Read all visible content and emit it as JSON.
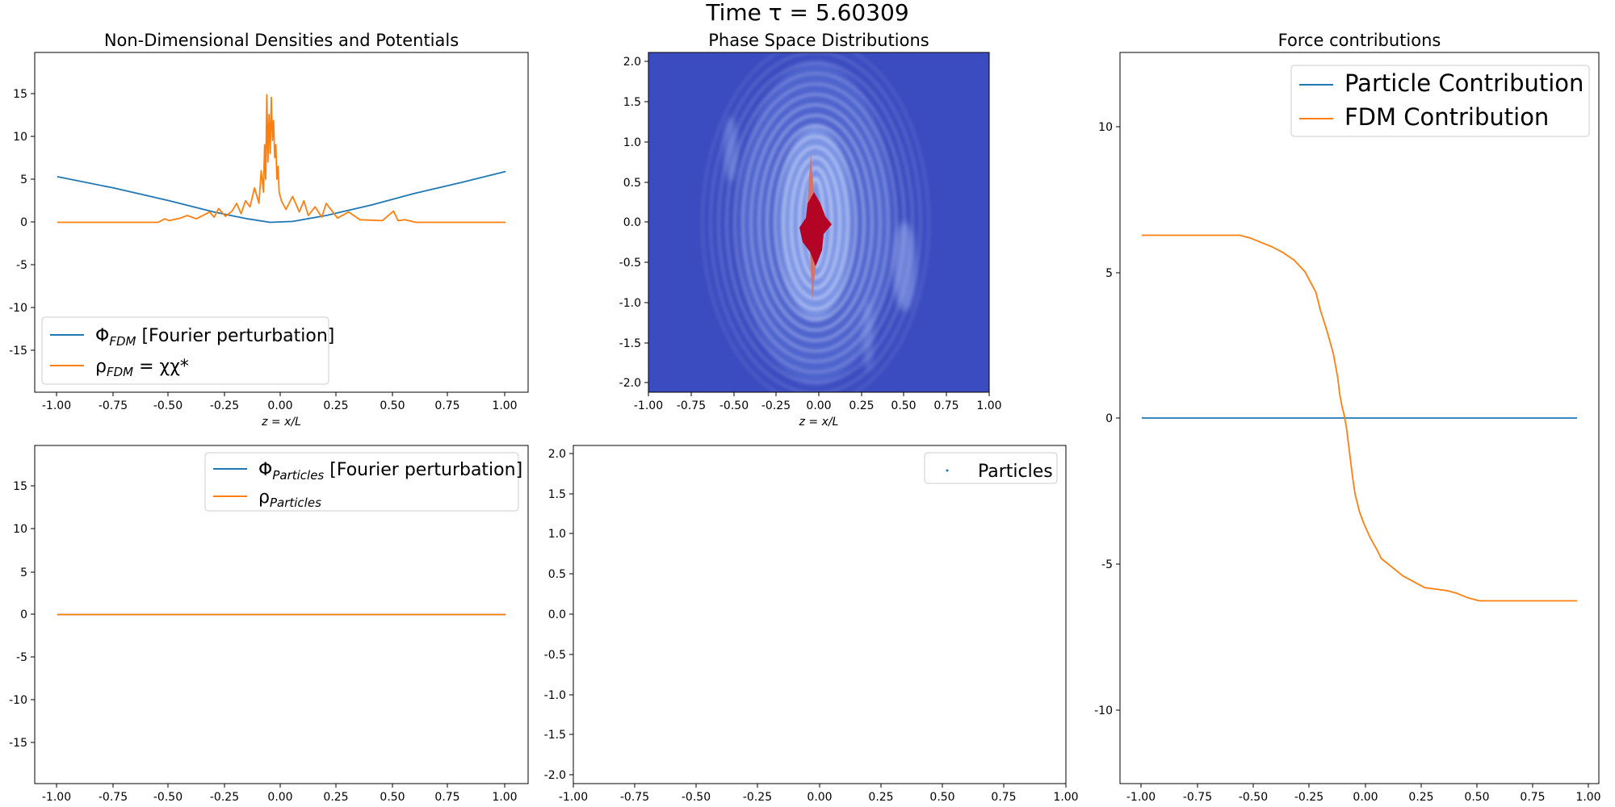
{
  "suptitle": "Time τ = 5.60309",
  "colors": {
    "blue": "#1f77b4",
    "orange": "#ff7f0e",
    "phase_bg": "#3b4cc0",
    "phase_core": "#b40426"
  },
  "chart_data": [
    {
      "id": "densities",
      "type": "line",
      "title": "Non-Dimensional Densities and Potentials",
      "xlabel": "z = x/L",
      "xlim": [
        -1.1,
        1.1
      ],
      "ylim": [
        -19.7,
        19.7
      ],
      "xticks": [
        "-1.00",
        "-0.75",
        "-0.50",
        "-0.25",
        "0.00",
        "0.25",
        "0.50",
        "0.75",
        "1.00"
      ],
      "yticks": [
        "15",
        "10",
        "5",
        "0",
        "-5",
        "-10",
        "-15"
      ],
      "legend_position": "lower-left",
      "series": [
        {
          "name": "ΦFDM [Fourier perturbation]",
          "x": [
            -1.0,
            -0.75,
            -0.5,
            -0.3,
            -0.15,
            -0.05,
            0.05,
            0.2,
            0.4,
            0.6,
            0.8,
            1.0
          ],
          "y": [
            5.3,
            4.0,
            2.5,
            1.2,
            0.4,
            0.0,
            0.1,
            0.8,
            2.0,
            3.4,
            4.6,
            5.9
          ]
        },
        {
          "name": "ρFDM = χχ*",
          "x": [
            -1.0,
            -0.55,
            -0.52,
            -0.5,
            -0.45,
            -0.42,
            -0.38,
            -0.32,
            -0.3,
            -0.28,
            -0.25,
            -0.22,
            -0.2,
            -0.18,
            -0.16,
            -0.14,
            -0.12,
            -0.1,
            -0.09,
            -0.08,
            -0.075,
            -0.07,
            -0.065,
            -0.06,
            -0.055,
            -0.05,
            -0.045,
            -0.04,
            -0.035,
            -0.03,
            -0.025,
            -0.02,
            -0.015,
            -0.01,
            0.0,
            0.02,
            0.05,
            0.08,
            0.1,
            0.12,
            0.15,
            0.18,
            0.2,
            0.25,
            0.3,
            0.35,
            0.45,
            0.5,
            0.52,
            0.55,
            0.6,
            1.0
          ],
          "y": [
            0.0,
            0.0,
            0.4,
            0.2,
            0.5,
            0.8,
            0.4,
            1.2,
            0.6,
            1.6,
            0.7,
            1.3,
            2.2,
            1.0,
            2.5,
            1.8,
            4.0,
            2.2,
            6.0,
            3.5,
            9.0,
            5.0,
            14.8,
            7.0,
            12.5,
            8.0,
            14.5,
            9.5,
            11.8,
            7.5,
            9.0,
            5.0,
            6.5,
            3.5,
            2.5,
            1.5,
            3.0,
            1.2,
            2.5,
            0.8,
            1.8,
            0.6,
            2.2,
            0.5,
            1.2,
            0.3,
            0.2,
            1.3,
            0.2,
            0.3,
            0.0,
            0.0
          ]
        }
      ]
    },
    {
      "id": "phase_fdm",
      "type": "heatmap",
      "title": "Phase Space Distributions",
      "xlabel": "z = x/L",
      "xlim": [
        -1.0,
        1.0
      ],
      "ylim": [
        -2.15,
        2.15
      ],
      "xticks": [
        "-1.00",
        "-0.75",
        "-0.50",
        "-0.25",
        "0.00",
        "0.25",
        "0.50",
        "0.75",
        "1.00"
      ],
      "yticks": [
        "2.0",
        "1.5",
        "1.0",
        "0.5",
        "0.0",
        "-0.5",
        "-1.0",
        "-1.5",
        "-2.0"
      ]
    },
    {
      "id": "forces",
      "type": "line",
      "title": "Force contributions",
      "xlim": [
        -1.1,
        1.1
      ],
      "ylim": [
        -12.5,
        12.5
      ],
      "xticks": [
        "-1.00",
        "-0.75",
        "-0.50",
        "-0.25",
        "0.00",
        "0.25",
        "0.50",
        "0.75",
        "1.00"
      ],
      "yticks": [
        "10",
        "5",
        "0",
        "-5",
        "-10"
      ],
      "legend_position": "top-right",
      "series": [
        {
          "name": "Particle Contribution",
          "x": [
            -1.0,
            1.0
          ],
          "y": [
            0.0,
            0.0
          ]
        },
        {
          "name": "FDM Contribution",
          "x": [
            -1.0,
            -0.55,
            -0.5,
            -0.45,
            -0.4,
            -0.35,
            -0.3,
            -0.25,
            -0.2,
            -0.18,
            -0.15,
            -0.12,
            -0.1,
            -0.09,
            -0.08,
            -0.07,
            -0.06,
            -0.05,
            -0.04,
            -0.03,
            -0.02,
            0.0,
            0.02,
            0.05,
            0.08,
            0.1,
            0.15,
            0.2,
            0.25,
            0.3,
            0.35,
            0.4,
            0.45,
            0.5,
            0.55,
            1.0
          ],
          "y": [
            6.25,
            6.25,
            6.15,
            6.0,
            5.85,
            5.65,
            5.4,
            5.0,
            4.3,
            3.7,
            3.0,
            2.2,
            1.4,
            0.8,
            0.4,
            0.1,
            -0.3,
            -0.9,
            -1.5,
            -2.1,
            -2.6,
            -3.2,
            -3.6,
            -4.1,
            -4.5,
            -4.8,
            -5.1,
            -5.4,
            -5.6,
            -5.8,
            -5.85,
            -5.9,
            -6.0,
            -6.15,
            -6.25,
            -6.25
          ]
        }
      ]
    },
    {
      "id": "particles_density",
      "type": "line",
      "xlim": [
        -1.1,
        1.1
      ],
      "ylim": [
        -19.7,
        19.7
      ],
      "xticks": [
        "-1.00",
        "-0.75",
        "-0.50",
        "-0.25",
        "0.00",
        "0.25",
        "0.50",
        "0.75",
        "1.00"
      ],
      "yticks": [
        "15",
        "10",
        "5",
        "0",
        "-5",
        "-10",
        "-15"
      ],
      "legend_position": "top-right",
      "series": [
        {
          "name": "ΦParticles [Fourier perturbation]",
          "x": [
            -1.0,
            1.0
          ],
          "y": [
            0.0,
            0.0
          ]
        },
        {
          "name": "ρParticles",
          "x": [
            -1.0,
            1.0
          ],
          "y": [
            0.0,
            0.0
          ]
        }
      ]
    },
    {
      "id": "particles_phase",
      "type": "scatter",
      "xlim": [
        -1.0,
        1.0
      ],
      "ylim": [
        -2.1,
        2.1
      ],
      "xticks": [
        "-1.00",
        "-0.75",
        "-0.50",
        "-0.25",
        "0.00",
        "0.25",
        "0.50",
        "0.75",
        "1.00"
      ],
      "yticks": [
        "2.0",
        "1.5",
        "1.0",
        "0.5",
        "0.0",
        "-0.5",
        "-1.0",
        "-1.5",
        "-2.0"
      ],
      "legend_position": "top-right",
      "series": [
        {
          "name": "Particles",
          "x": [],
          "y": []
        }
      ]
    }
  ],
  "legends": {
    "densities": [
      {
        "main": "Φ",
        "sub": "FDM",
        "rest": " [Fourier perturbation]"
      },
      {
        "main": "ρ",
        "sub": "FDM",
        "rest": " = χχ*"
      }
    ],
    "particles_density": [
      {
        "main": "Φ",
        "sub": "Particles",
        "rest": " [Fourier perturbation]"
      },
      {
        "main": "ρ",
        "sub": "Particles",
        "rest": ""
      }
    ],
    "particles_phase": [
      {
        "main": "Particles",
        "sub": "",
        "rest": ""
      }
    ],
    "forces": [
      {
        "main": "Particle Contribution",
        "sub": "",
        "rest": ""
      },
      {
        "main": "FDM Contribution",
        "sub": "",
        "rest": ""
      }
    ]
  }
}
